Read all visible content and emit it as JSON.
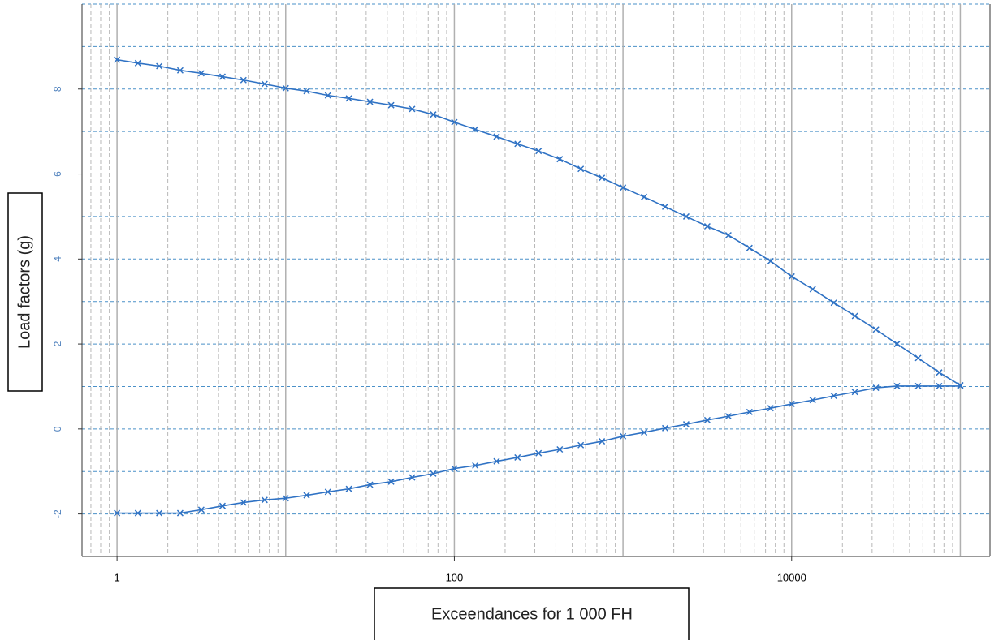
{
  "chart_data": {
    "type": "line",
    "xlabel": "Exceendances for 1 000 FH",
    "ylabel": "Load factors (g)",
    "xscale": "log",
    "xlim": [
      0.62,
      150000
    ],
    "xticks": [
      1,
      100,
      10000
    ],
    "ylim": [
      -3,
      10
    ],
    "yticks": [
      -2,
      0,
      2,
      4,
      6,
      8
    ],
    "grid": true,
    "marker": "x",
    "x": [
      1,
      1.33,
      1.78,
      2.37,
      3.16,
      4.22,
      5.62,
      7.5,
      10,
      13.3,
      17.8,
      23.7,
      31.6,
      42.2,
      56.2,
      75,
      100,
      133,
      178,
      237,
      316,
      422,
      562,
      750,
      1000,
      1334,
      1778,
      2371,
      3162,
      4217,
      5623,
      7499,
      10000,
      13335,
      17783,
      23714,
      31623,
      42170,
      56234,
      74989,
      100000
    ],
    "series": [
      {
        "color": "#2f72c4",
        "values": [
          8.69,
          8.61,
          8.54,
          8.44,
          8.37,
          8.29,
          8.21,
          8.12,
          8.02,
          7.95,
          7.85,
          7.78,
          7.7,
          7.62,
          7.53,
          7.4,
          7.22,
          7.05,
          6.88,
          6.71,
          6.54,
          6.35,
          6.12,
          5.91,
          5.68,
          5.46,
          5.23,
          5.0,
          4.77,
          4.56,
          4.26,
          3.95,
          3.59,
          3.29,
          2.97,
          2.66,
          2.34,
          2.0,
          1.67,
          1.33,
          1.03
        ]
      },
      {
        "color": "#2f72c4",
        "values": [
          -1.98,
          -1.98,
          -1.98,
          -1.98,
          -1.9,
          -1.81,
          -1.73,
          -1.67,
          -1.63,
          -1.56,
          -1.48,
          -1.41,
          -1.31,
          -1.24,
          -1.14,
          -1.05,
          -0.93,
          -0.86,
          -0.76,
          -0.67,
          -0.57,
          -0.48,
          -0.38,
          -0.29,
          -0.17,
          -0.08,
          0.02,
          0.11,
          0.21,
          0.3,
          0.4,
          0.49,
          0.59,
          0.68,
          0.78,
          0.87,
          0.97,
          1.01,
          1.01,
          1.01,
          1.01
        ]
      }
    ]
  }
}
